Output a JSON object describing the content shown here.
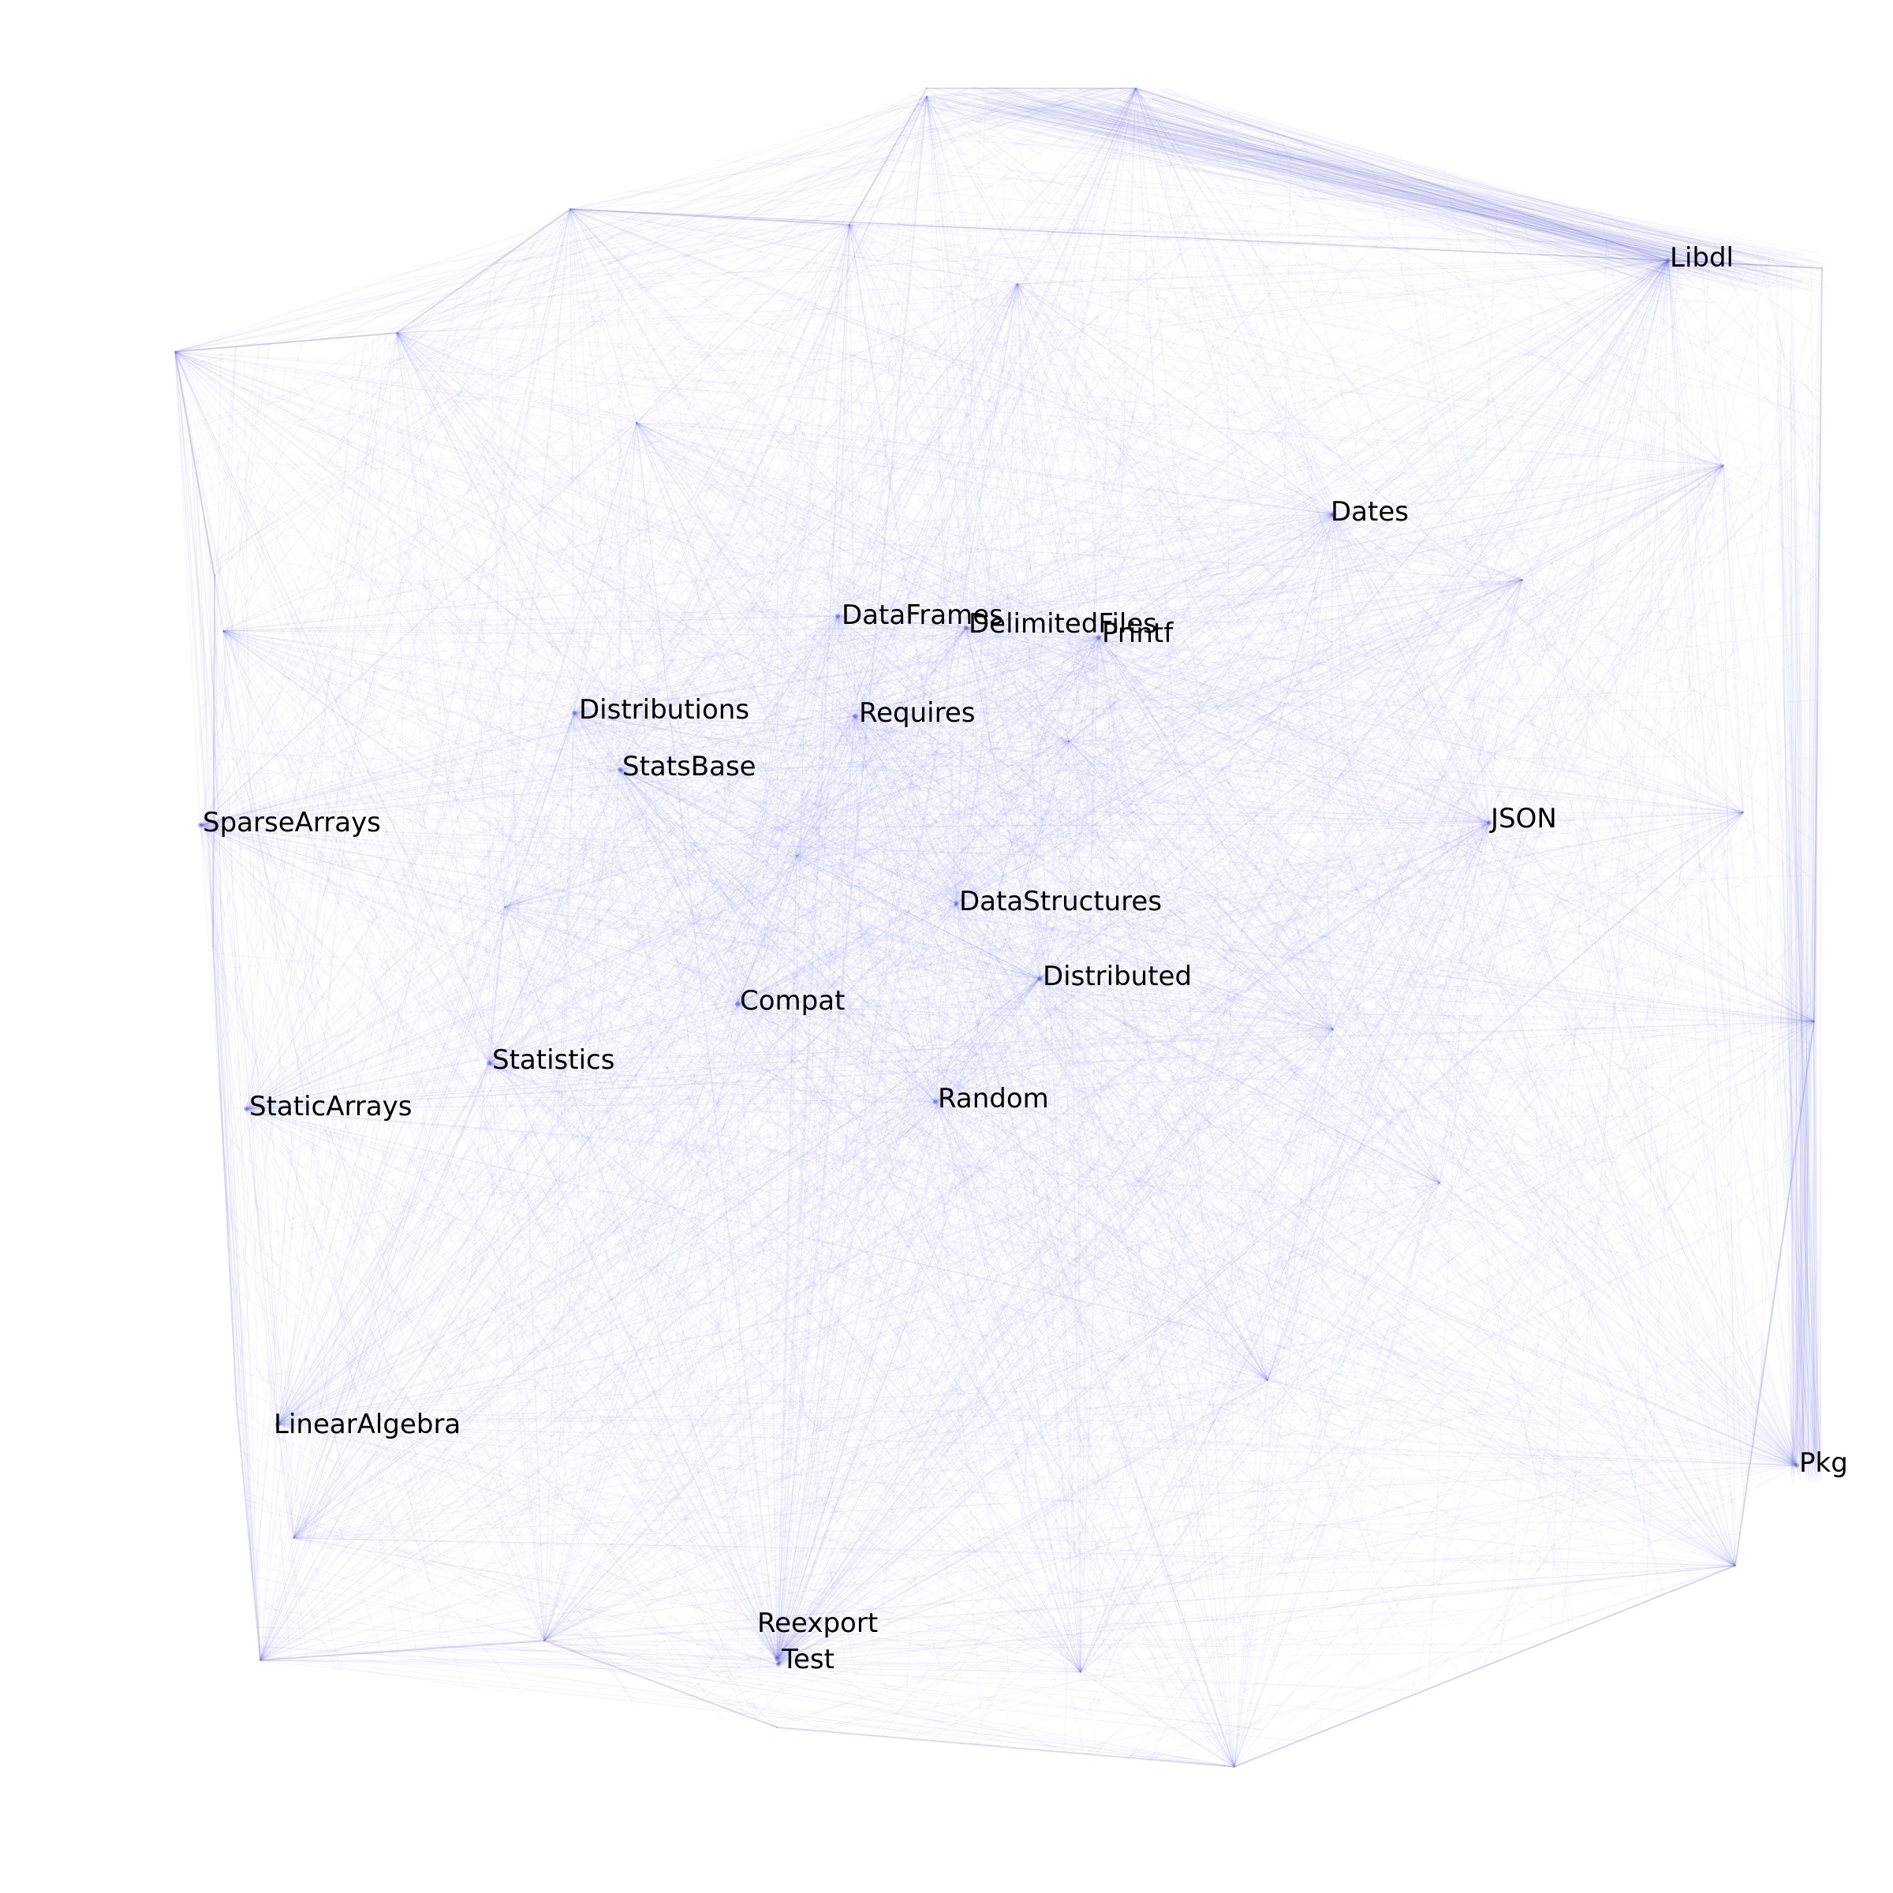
{
  "graph": {
    "edge_color": "#6a6ad8",
    "background": "#ffffff",
    "label_color": "#000000",
    "labeled_nodes": [
      {
        "id": "libdl",
        "label": "Libdl"
      },
      {
        "id": "dates",
        "label": "Dates"
      },
      {
        "id": "dataframes",
        "label": "DataFrames"
      },
      {
        "id": "delimitedfiles",
        "label": "DelimitedFiles"
      },
      {
        "id": "printf",
        "label": "Printf"
      },
      {
        "id": "distributions",
        "label": "Distributions"
      },
      {
        "id": "requires",
        "label": "Requires"
      },
      {
        "id": "statsbase",
        "label": "StatsBase"
      },
      {
        "id": "sparsearrays",
        "label": "SparseArrays"
      },
      {
        "id": "json",
        "label": "JSON"
      },
      {
        "id": "datastructures",
        "label": "DataStructures"
      },
      {
        "id": "distributed",
        "label": "Distributed"
      },
      {
        "id": "compat",
        "label": "Compat"
      },
      {
        "id": "statistics",
        "label": "Statistics"
      },
      {
        "id": "random",
        "label": "Random"
      },
      {
        "id": "staticarrays",
        "label": "StaticArrays"
      },
      {
        "id": "linearalgebra",
        "label": "LinearAlgebra"
      },
      {
        "id": "pkg",
        "label": "Pkg"
      },
      {
        "id": "reexport",
        "label": "Reexport"
      },
      {
        "id": "test",
        "label": "Test"
      }
    ]
  }
}
